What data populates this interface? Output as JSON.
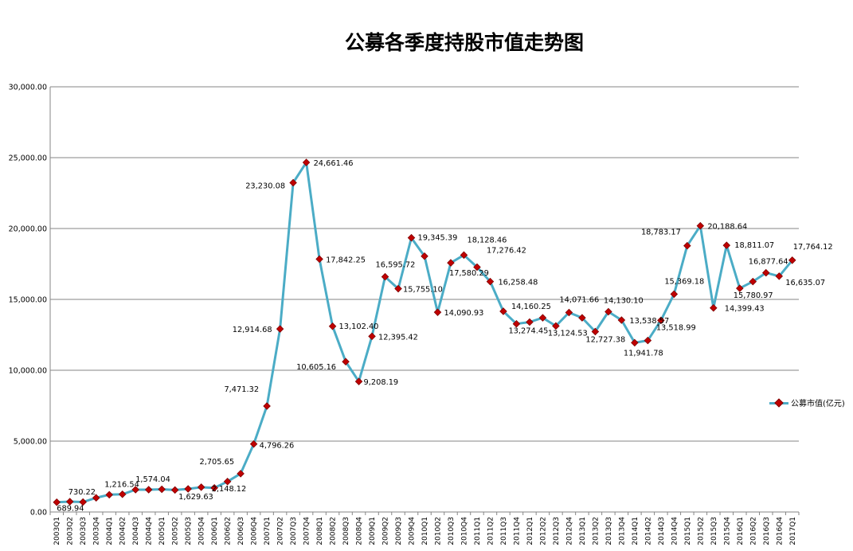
{
  "chart_data": {
    "type": "line",
    "title": "公募各季度持股市值走势图",
    "xlabel": "",
    "ylabel": "",
    "ylim": [
      0,
      30000
    ],
    "yticks": [
      "0.00",
      "5,000.00",
      "10,000.00",
      "15,000.00",
      "20,000.00",
      "25,000.00",
      "30,000.00"
    ],
    "grid": "horizontal",
    "legend_position": "right",
    "categories": [
      "2003Q1",
      "2003Q2",
      "2003Q3",
      "2003Q4",
      "2004Q1",
      "2004Q2",
      "2004Q3",
      "2004Q4",
      "2005Q1",
      "2005Q2",
      "2005Q3",
      "2005Q4",
      "2006Q1",
      "2006Q2",
      "2006Q3",
      "2006Q4",
      "2007Q1",
      "2007Q2",
      "2007Q3",
      "2007Q4",
      "2008Q1",
      "2008Q2",
      "2008Q3",
      "2008Q4",
      "2009Q1",
      "2009Q2",
      "2009Q3",
      "2009Q4",
      "2010Q1",
      "2010Q2",
      "2010Q3",
      "2010Q4",
      "2011Q1",
      "2011Q2",
      "2011Q3",
      "2011Q4",
      "2012Q1",
      "2012Q2",
      "2012Q3",
      "2012Q4",
      "2013Q1",
      "2013Q2",
      "2013Q3",
      "2013Q4",
      "2014Q1",
      "2014Q2",
      "2014Q3",
      "2014Q4",
      "2015Q1",
      "2015Q2",
      "2015Q3",
      "2015Q4",
      "2016Q1",
      "2016Q2",
      "2016Q3",
      "2016Q4",
      "2017Q1"
    ],
    "series": [
      {
        "name": "公募市值(亿元)",
        "color": "#4BACC6",
        "marker_color": "#C00000",
        "values": [
          689.94,
          730.22,
          700,
          1000,
          1216.54,
          1250,
          1574.04,
          1574.04,
          1600,
          1550,
          1629.63,
          1750,
          1700,
          2148.12,
          2705.65,
          4796.26,
          7471.32,
          12914.68,
          23230.08,
          24661.46,
          17842.25,
          13102.4,
          10605.16,
          9208.19,
          12395.42,
          16595.72,
          15755.1,
          19345.39,
          18050,
          14090.93,
          17580.29,
          18128.46,
          17276.42,
          16258.48,
          14160.25,
          13274.45,
          13400,
          13700,
          13124.53,
          14071.66,
          13700,
          12727.38,
          14130.1,
          13538.57,
          11941.78,
          12100,
          13518.99,
          15369.18,
          18783.17,
          20188.64,
          14399.43,
          18811.07,
          15780.97,
          16258.48,
          16877.64,
          16635.07,
          17764.12
        ]
      }
    ],
    "data_labels": [
      {
        "i": 0,
        "text": "689.94"
      },
      {
        "i": 1,
        "text": "730.22"
      },
      {
        "i": 4,
        "text": "1,216.54"
      },
      {
        "i": 6,
        "text": "1,574.04"
      },
      {
        "i": 10,
        "text": "1,629.63"
      },
      {
        "i": 13,
        "text": "2,148.12"
      },
      {
        "i": 14,
        "text": "2,705.65"
      },
      {
        "i": 15,
        "text": "4,796.26"
      },
      {
        "i": 16,
        "text": "7,471.32"
      },
      {
        "i": 17,
        "text": "12,914.68"
      },
      {
        "i": 18,
        "text": "23,230.08"
      },
      {
        "i": 19,
        "text": "24,661.46"
      },
      {
        "i": 20,
        "text": "17,842.25"
      },
      {
        "i": 21,
        "text": "13,102.40"
      },
      {
        "i": 22,
        "text": "10,605.16"
      },
      {
        "i": 23,
        "text": "9,208.19"
      },
      {
        "i": 24,
        "text": "12,395.42"
      },
      {
        "i": 25,
        "text": "16,595.72"
      },
      {
        "i": 26,
        "text": "15,755.10"
      },
      {
        "i": 27,
        "text": "19,345.39"
      },
      {
        "i": 29,
        "text": "14,090.93"
      },
      {
        "i": 30,
        "text": "17,580.29"
      },
      {
        "i": 31,
        "text": "18,128.46"
      },
      {
        "i": 32,
        "text": "17,276.42"
      },
      {
        "i": 33,
        "text": "16,258.48"
      },
      {
        "i": 34,
        "text": "14,160.25"
      },
      {
        "i": 35,
        "text": "13,274.45"
      },
      {
        "i": 38,
        "text": "13,124.53"
      },
      {
        "i": 39,
        "text": "14,071.66"
      },
      {
        "i": 41,
        "text": "12,727.38"
      },
      {
        "i": 42,
        "text": "14,130.10"
      },
      {
        "i": 43,
        "text": "13,538.57"
      },
      {
        "i": 44,
        "text": "11,941.78"
      },
      {
        "i": 46,
        "text": "13,518.99"
      },
      {
        "i": 47,
        "text": "15,369.18"
      },
      {
        "i": 48,
        "text": "18,783.17"
      },
      {
        "i": 49,
        "text": "20,188.64"
      },
      {
        "i": 50,
        "text": "14,399.43"
      },
      {
        "i": 51,
        "text": "18,811.07"
      },
      {
        "i": 52,
        "text": "15,780.97"
      },
      {
        "i": 54,
        "text": "16,877.64"
      },
      {
        "i": 55,
        "text": "16,635.07"
      },
      {
        "i": 56,
        "text": "17,764.12"
      }
    ]
  }
}
